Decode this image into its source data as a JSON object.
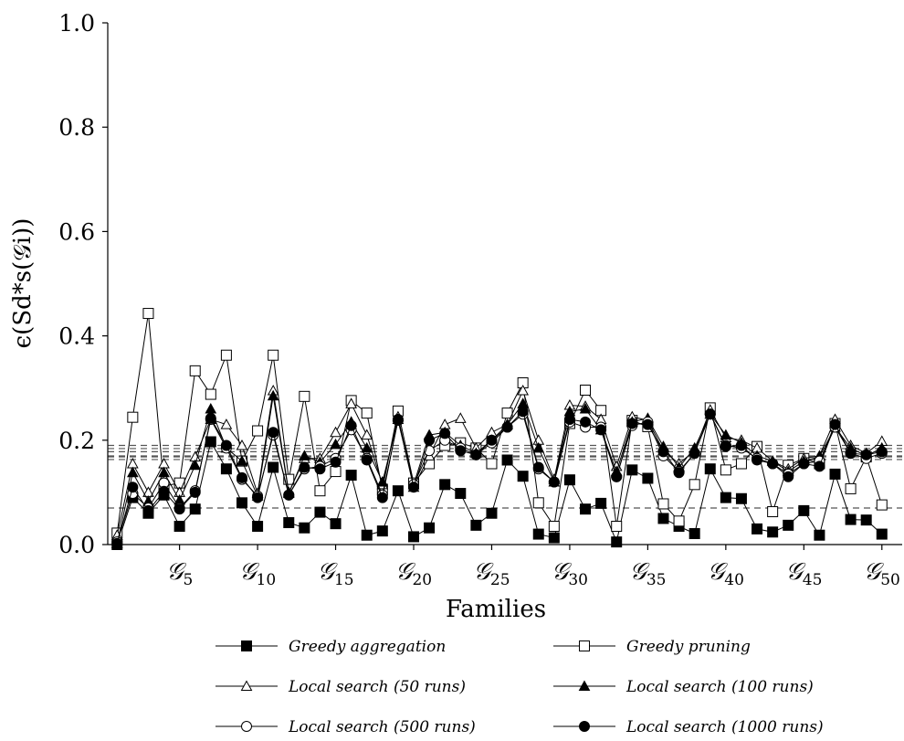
{
  "chart_data": {
    "type": "line",
    "title": "",
    "xlabel": "Families",
    "ylabel": "ϵ(Sd*s(𝒢i))",
    "ylim": [
      0.0,
      1.0
    ],
    "yticks": [
      "0.0",
      "0.2",
      "0.4",
      "0.6",
      "0.8",
      "1.0"
    ],
    "ytick_values": [
      0.0,
      0.2,
      0.4,
      0.6,
      0.8,
      1.0
    ],
    "xticks": [
      {
        "x": 5,
        "label": "𝒢",
        "sub": "5"
      },
      {
        "x": 10,
        "label": "𝒢",
        "sub": "10"
      },
      {
        "x": 15,
        "label": "𝒢",
        "sub": "15"
      },
      {
        "x": 20,
        "label": "𝒢",
        "sub": "20"
      },
      {
        "x": 25,
        "label": "𝒢",
        "sub": "25"
      },
      {
        "x": 30,
        "label": "𝒢",
        "sub": "30"
      },
      {
        "x": 35,
        "label": "𝒢",
        "sub": "35"
      },
      {
        "x": 40,
        "label": "𝒢",
        "sub": "40"
      },
      {
        "x": 45,
        "label": "𝒢",
        "sub": "45"
      },
      {
        "x": 50,
        "label": "𝒢",
        "sub": "50"
      }
    ],
    "xlim": [
      0.4,
      51.3
    ],
    "x": [
      1,
      2,
      3,
      4,
      5,
      6,
      7,
      8,
      9,
      10,
      11,
      12,
      13,
      14,
      15,
      16,
      17,
      18,
      19,
      20,
      21,
      22,
      23,
      24,
      25,
      26,
      27,
      28,
      29,
      30,
      31,
      32,
      33,
      34,
      35,
      36,
      37,
      38,
      39,
      40,
      41,
      42,
      43,
      44,
      45,
      46,
      47,
      48,
      49,
      50
    ],
    "legend_position": "bottom",
    "series": [
      {
        "name": "Greedy aggregation",
        "marker": "square-filled",
        "values": [
          0.0,
          0.09,
          0.06,
          0.095,
          0.035,
          0.068,
          0.197,
          0.145,
          0.08,
          0.035,
          0.148,
          0.042,
          0.032,
          0.062,
          0.04,
          0.133,
          0.018,
          0.026,
          0.103,
          0.015,
          0.032,
          0.115,
          0.098,
          0.037,
          0.06,
          0.162,
          0.131,
          0.02,
          0.013,
          0.124,
          0.068,
          0.079,
          0.005,
          0.143,
          0.127,
          0.05,
          0.035,
          0.021,
          0.145,
          0.09,
          0.088,
          0.03,
          0.024,
          0.037,
          0.065,
          0.018,
          0.135,
          0.048,
          0.047,
          0.02
        ]
      },
      {
        "name": "Greedy pruning",
        "marker": "square-open",
        "values": [
          0.022,
          0.244,
          0.443,
          0.112,
          0.118,
          0.333,
          0.288,
          0.363,
          0.16,
          0.218,
          0.363,
          0.125,
          0.284,
          0.103,
          0.14,
          0.276,
          0.252,
          0.106,
          0.256,
          0.118,
          0.155,
          0.19,
          0.195,
          0.185,
          0.155,
          0.252,
          0.31,
          0.08,
          0.035,
          0.232,
          0.296,
          0.257,
          0.035,
          0.238,
          0.226,
          0.078,
          0.045,
          0.115,
          0.262,
          0.143,
          0.155,
          0.188,
          0.063,
          0.152,
          0.165,
          0.155,
          0.232,
          0.107,
          0.168,
          0.076
        ]
      },
      {
        "name": "Local search (50 runs)",
        "marker": "triangle-open",
        "values": [
          0.018,
          0.155,
          0.1,
          0.155,
          0.1,
          0.168,
          0.24,
          0.23,
          0.19,
          0.098,
          0.295,
          0.1,
          0.165,
          0.165,
          0.215,
          0.27,
          0.21,
          0.115,
          0.245,
          0.11,
          0.17,
          0.23,
          0.242,
          0.185,
          0.215,
          0.23,
          0.295,
          0.2,
          0.125,
          0.267,
          0.265,
          0.24,
          0.15,
          0.245,
          0.238,
          0.18,
          0.155,
          0.18,
          0.258,
          0.205,
          0.2,
          0.185,
          0.16,
          0.145,
          0.165,
          0.17,
          0.24,
          0.19,
          0.175,
          0.198
        ]
      },
      {
        "name": "Local search (100 runs)",
        "marker": "triangle-filled",
        "values": [
          0.002,
          0.138,
          0.083,
          0.138,
          0.085,
          0.152,
          0.26,
          0.185,
          0.16,
          0.093,
          0.285,
          0.098,
          0.17,
          0.158,
          0.192,
          0.235,
          0.185,
          0.12,
          0.24,
          0.115,
          0.21,
          0.215,
          0.19,
          0.175,
          0.2,
          0.23,
          0.27,
          0.185,
          0.12,
          0.255,
          0.26,
          0.22,
          0.14,
          0.235,
          0.242,
          0.188,
          0.148,
          0.185,
          0.25,
          0.21,
          0.195,
          0.17,
          0.16,
          0.14,
          0.16,
          0.168,
          0.225,
          0.185,
          0.17,
          0.185
        ]
      },
      {
        "name": "Local search (500 runs)",
        "marker": "circle-open",
        "values": [
          0.005,
          0.098,
          0.07,
          0.118,
          0.07,
          0.103,
          0.24,
          0.185,
          0.125,
          0.093,
          0.21,
          0.095,
          0.145,
          0.15,
          0.165,
          0.22,
          0.165,
          0.095,
          0.238,
          0.115,
          0.18,
          0.2,
          0.185,
          0.172,
          0.195,
          0.225,
          0.25,
          0.145,
          0.12,
          0.235,
          0.225,
          0.225,
          0.13,
          0.228,
          0.235,
          0.17,
          0.14,
          0.175,
          0.25,
          0.19,
          0.185,
          0.165,
          0.155,
          0.135,
          0.155,
          0.16,
          0.225,
          0.175,
          0.165,
          0.175
        ]
      },
      {
        "name": "Local search (1000 runs)",
        "marker": "circle-filled",
        "values": [
          0.002,
          0.11,
          0.065,
          0.102,
          0.068,
          0.1,
          0.242,
          0.19,
          0.128,
          0.09,
          0.215,
          0.095,
          0.148,
          0.145,
          0.158,
          0.228,
          0.162,
          0.09,
          0.24,
          0.11,
          0.2,
          0.213,
          0.18,
          0.172,
          0.2,
          0.225,
          0.255,
          0.148,
          0.12,
          0.24,
          0.235,
          0.22,
          0.13,
          0.232,
          0.23,
          0.178,
          0.138,
          0.175,
          0.25,
          0.188,
          0.19,
          0.162,
          0.155,
          0.13,
          0.155,
          0.15,
          0.23,
          0.175,
          0.172,
          0.178
        ]
      }
    ],
    "reference_lines": [
      {
        "y": 0.07,
        "style": "dashed"
      },
      {
        "y": 0.163,
        "style": "dashed"
      },
      {
        "y": 0.168,
        "style": "dashed"
      },
      {
        "y": 0.17,
        "style": "dashed"
      },
      {
        "y": 0.178,
        "style": "dashed"
      },
      {
        "y": 0.184,
        "style": "dashed"
      },
      {
        "y": 0.19,
        "style": "dashed"
      }
    ],
    "colors": {
      "line": "#000000",
      "reference": "#555555",
      "background": "#ffffff"
    }
  }
}
